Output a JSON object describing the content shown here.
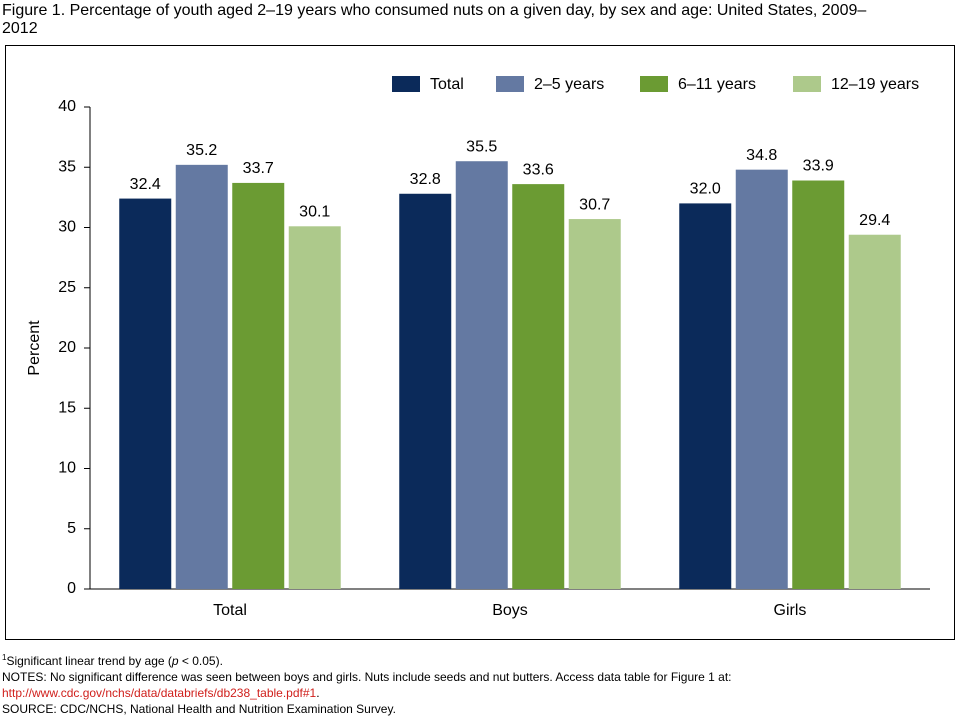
{
  "chart_data": {
    "type": "bar",
    "title": "Figure 1. Percentage of youth aged 2–19 years who consumed nuts on a given day, by sex and age: United States, 2009–2012",
    "y_label": "Percent",
    "categories": [
      "Total",
      "Boys",
      "Girls"
    ],
    "series": [
      {
        "name": "Total",
        "color": "#0b2a5a",
        "values": [
          32.4,
          32.8,
          32.0
        ],
        "value_labels": [
          "32.4",
          "32.8",
          "32.0"
        ]
      },
      {
        "name": "2–5 years",
        "color": "#6479a2",
        "values": [
          35.2,
          35.5,
          34.8
        ],
        "value_labels": [
          "35.2",
          "35.5",
          "34.8"
        ]
      },
      {
        "name": "6–11 years",
        "color": "#6b9b33",
        "values": [
          33.7,
          33.6,
          33.9
        ],
        "value_labels": [
          "33.7",
          "33.6",
          "33.9"
        ]
      },
      {
        "name": "12–19 years",
        "color": "#adc98b",
        "values": [
          30.1,
          30.7,
          29.4
        ],
        "value_labels": [
          "30.1",
          "30.7",
          "29.4"
        ]
      }
    ],
    "ylim": [
      0,
      40
    ],
    "yticks": [
      0,
      5,
      10,
      15,
      20,
      25,
      30,
      35,
      40
    ],
    "grid": false
  },
  "notes": {
    "footnote": {
      "mark": "1",
      "before": "Significant linear trend by age (",
      "italic": "p",
      "after": " < 0.05)."
    },
    "notes_line": "NOTES: No significant difference was seen between boys and girls. Nuts include seeds and nut butters. Access data table for Figure 1 at:",
    "link": "http://www.cdc.gov/nchs/data/databriefs/db238_table.pdf#1",
    "link_end": ".",
    "source": "SOURCE: CDC/NCHS, National Health and Nutrition Examination Survey."
  }
}
